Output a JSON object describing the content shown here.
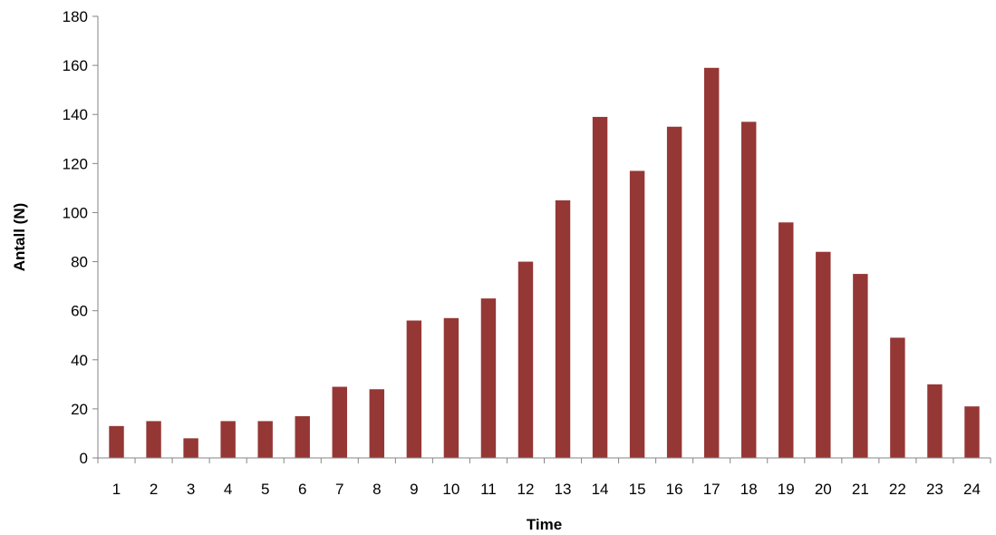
{
  "chart_data": {
    "type": "bar",
    "title": "",
    "xlabel": "Time",
    "ylabel": "Antall (N)",
    "categories": [
      "1",
      "2",
      "3",
      "4",
      "5",
      "6",
      "7",
      "8",
      "9",
      "10",
      "11",
      "12",
      "13",
      "14",
      "15",
      "16",
      "17",
      "18",
      "19",
      "20",
      "21",
      "22",
      "23",
      "24"
    ],
    "values": [
      13,
      15,
      8,
      15,
      15,
      17,
      29,
      28,
      56,
      57,
      65,
      80,
      105,
      139,
      117,
      135,
      159,
      137,
      96,
      84,
      75,
      49,
      30,
      21
    ],
    "ylim": [
      0,
      180
    ],
    "yticks": [
      0,
      20,
      40,
      60,
      80,
      100,
      120,
      140,
      160,
      180
    ],
    "bar_color": "#953735",
    "grid": false,
    "legend": "none"
  }
}
